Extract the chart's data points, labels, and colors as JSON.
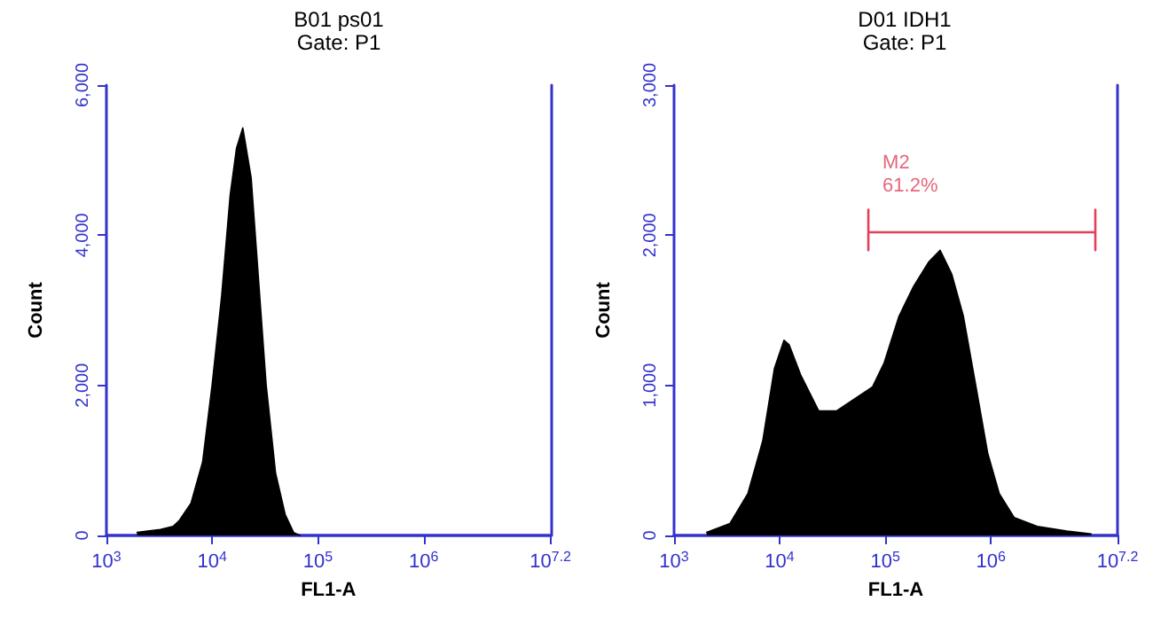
{
  "chart_data": [
    {
      "type": "area",
      "title": "B01 ps01",
      "subtitle": "Gate: P1",
      "xlabel": "FL1-A",
      "ylabel": "Count",
      "log": "x",
      "grid": false,
      "marker": "none",
      "xlim": [
        1000,
        15848932
      ],
      "xticks": [
        {
          "value": 1000,
          "label": "10$^{3}$"
        },
        {
          "value": 10000,
          "label": "10$^{4}$"
        },
        {
          "value": 100000,
          "label": "10$^{5}$"
        },
        {
          "value": 1000000,
          "label": "10$^{6}$"
        },
        {
          "value": 15848932,
          "label": "10$^{7.2}$"
        }
      ],
      "ylim": [
        0,
        6000
      ],
      "yticks": [
        0,
        {
          "value": 2000,
          "label": "2,000"
        },
        {
          "value": 4000,
          "label": "4,000"
        },
        {
          "value": 6000,
          "label": "6,000"
        }
      ],
      "series": [
        {
          "color": "#000000",
          "x": [
            1950,
            3240,
            4270,
            4900,
            6310,
            8130,
            10000,
            12300,
            14800,
            17000,
            19500,
            23400,
            26900,
            32400,
            39800,
            49000,
            58900,
            67600
          ],
          "values": [
            40,
            80,
            120,
            200,
            430,
            980,
            2010,
            3190,
            4530,
            5160,
            5430,
            4760,
            3580,
            2010,
            830,
            280,
            40,
            0
          ]
        }
      ]
    },
    {
      "type": "area",
      "title": "D01 IDH1",
      "subtitle": "Gate: P1",
      "xlabel": "FL1-A",
      "ylabel": "Count",
      "log": "x",
      "grid": false,
      "marker": "none",
      "xlim": [
        1000,
        15848932
      ],
      "xticks": [
        {
          "value": 1000,
          "label": "10$^{3}$"
        },
        {
          "value": 10000,
          "label": "10$^{4}$"
        },
        {
          "value": 100000,
          "label": "10$^{5}$"
        },
        {
          "value": 1000000,
          "label": "10$^{6}$"
        },
        {
          "value": 15848932,
          "label": "10$^{7.2}$"
        }
      ],
      "ylim": [
        0,
        3000
      ],
      "yticks": [
        0,
        {
          "value": 1000,
          "label": "1,000"
        },
        {
          "value": 2000,
          "label": "2,000"
        },
        {
          "value": 3000,
          "label": "3,000"
        }
      ],
      "annotations": [
        {
          "text": "M2\n61.2%",
          "x": 69200,
          "y": 2170
        }
      ],
      "series": [
        {
          "color": "#000000",
          "x": [
            2040,
            3390,
            5010,
            6920,
            8910,
            11000,
            12300,
            15800,
            23400,
            34700,
            51300,
            75900,
            97700,
            135000,
            186000,
            257000,
            331000,
            427000,
            550000,
            724000,
            933000,
            1200000,
            1660000,
            2750000,
            5250000,
            8910000
          ],
          "values": [
            20,
            80,
            280,
            630,
            1110,
            1300,
            1270,
            1070,
            830,
            830,
            910,
            990,
            1150,
            1460,
            1660,
            1820,
            1900,
            1740,
            1460,
            990,
            550,
            280,
            120,
            60,
            30,
            10
          ]
        },
        {
          "type": "line",
          "color": "#e0405a",
          "x": [
            69200,
            69200,
            69200,
            9770000,
            9770000,
            9770000
          ],
          "values": [
            2170,
            1900,
            2020,
            2020,
            2170,
            1900
          ]
        }
      ]
    }
  ]
}
